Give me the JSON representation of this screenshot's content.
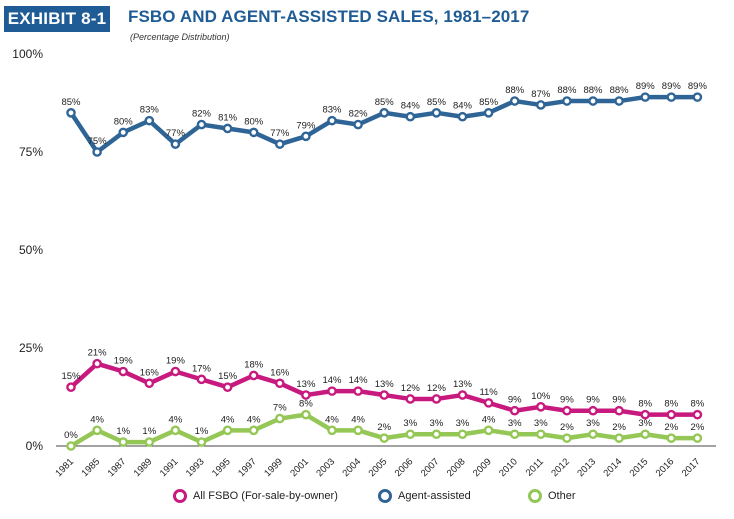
{
  "header": {
    "badge": "EXHIBIT 8-1",
    "title": "FSBO AND AGENT-ASSISTED SALES, 1981–2017",
    "subtitle": "(Percentage Distribution)"
  },
  "chart_data": {
    "type": "line",
    "title": "FSBO AND AGENT-ASSISTED SALES, 1981–2017",
    "subtitle": "(Percentage Distribution)",
    "xlabel": "",
    "ylabel": "",
    "ylim": [
      0,
      100
    ],
    "yticks": [
      "0%",
      "25%",
      "50%",
      "75%",
      "100%"
    ],
    "grid": false,
    "legend": "bottom",
    "categories": [
      "1981",
      "1985",
      "1987",
      "1989",
      "1991",
      "1993",
      "1995",
      "1997",
      "1999",
      "2001",
      "2003",
      "2004",
      "2005",
      "2006",
      "2007",
      "2008",
      "2009",
      "2010",
      "2011",
      "2012",
      "2013",
      "2014",
      "2015",
      "2016",
      "2017"
    ],
    "series": [
      {
        "name": "Agent-assisted",
        "color": "#2f6496",
        "values": [
          85,
          75,
          80,
          83,
          77,
          82,
          81,
          80,
          77,
          79,
          83,
          82,
          85,
          84,
          85,
          84,
          85,
          88,
          87,
          88,
          88,
          88,
          89,
          89,
          89
        ]
      },
      {
        "name": "All FSBO (For-sale-by-owner)",
        "color": "#c7197e",
        "values": [
          15,
          21,
          19,
          16,
          19,
          17,
          15,
          18,
          16,
          13,
          14,
          14,
          13,
          12,
          12,
          13,
          11,
          9,
          10,
          9,
          9,
          9,
          8,
          8,
          8
        ]
      },
      {
        "name": "Other",
        "color": "#94c755",
        "values": [
          0,
          4,
          1,
          1,
          4,
          1,
          4,
          4,
          7,
          8,
          4,
          4,
          2,
          3,
          3,
          3,
          4,
          3,
          3,
          2,
          3,
          2,
          3,
          2,
          2
        ]
      }
    ]
  },
  "legend": {
    "items": [
      {
        "label": "All FSBO (For-sale-by-owner)",
        "color": "#c7197e"
      },
      {
        "label": "Agent-assisted",
        "color": "#2f6496"
      },
      {
        "label": "Other",
        "color": "#94c755"
      }
    ]
  }
}
